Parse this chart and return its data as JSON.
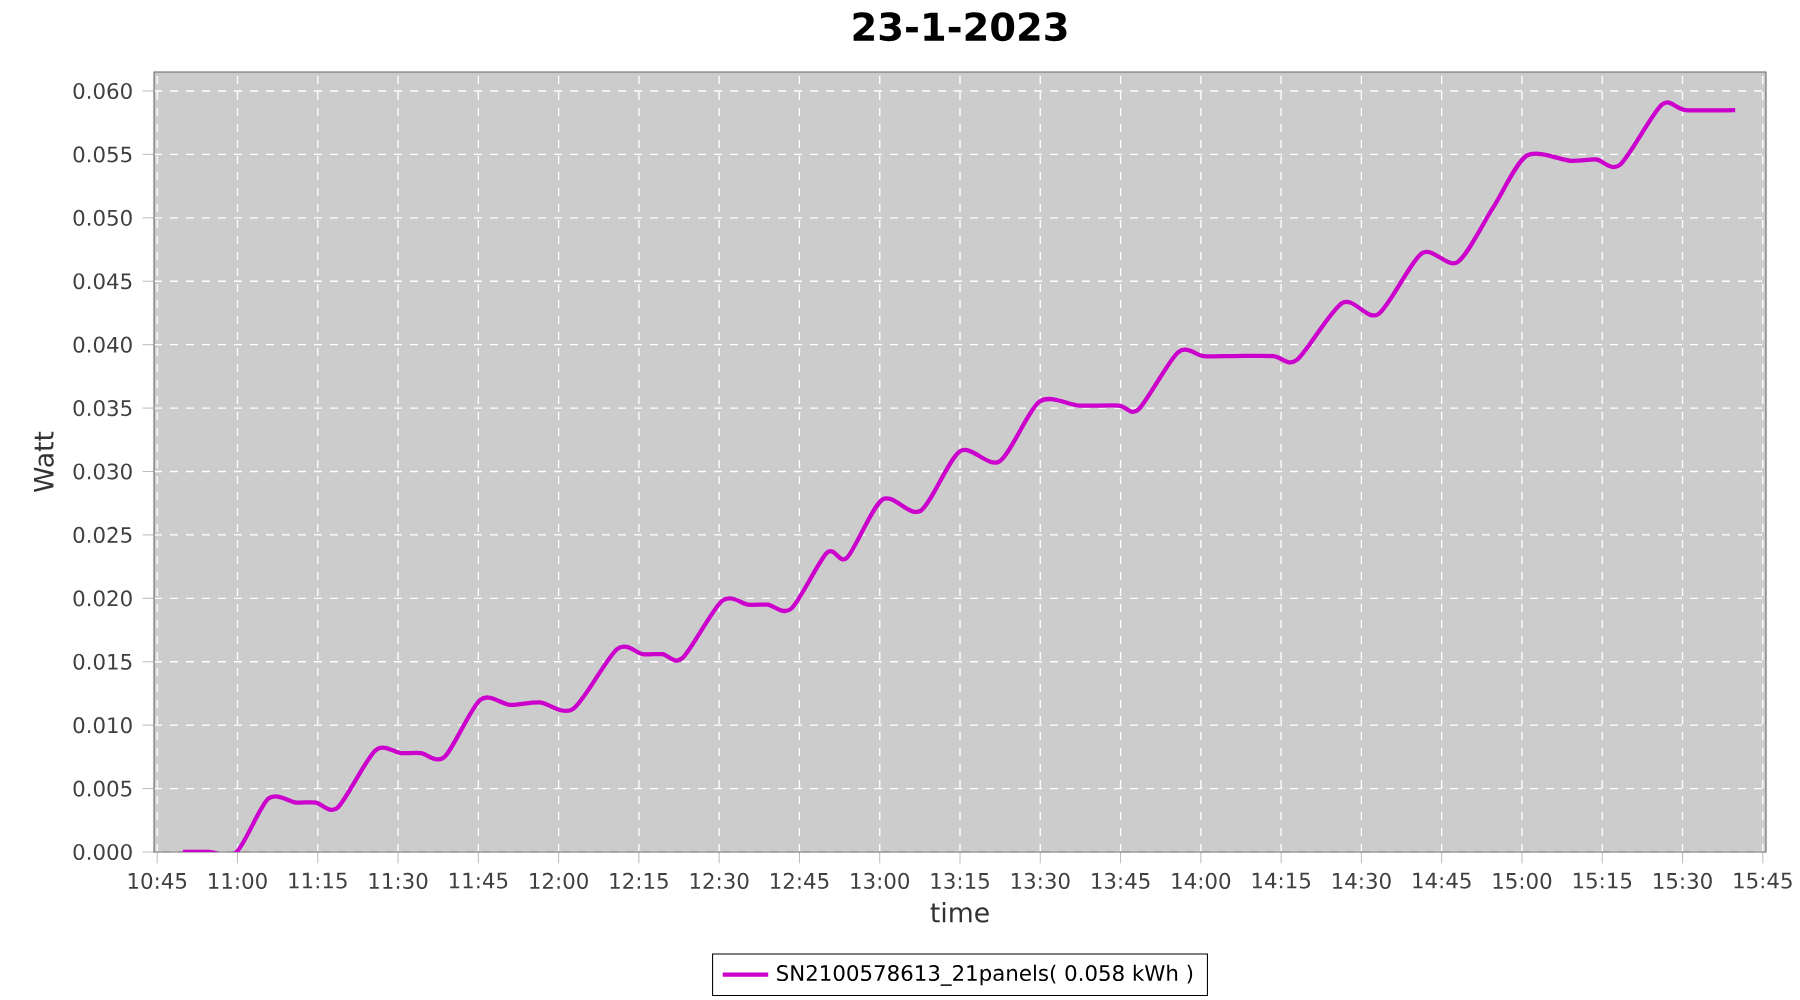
{
  "chart_data": {
    "type": "line",
    "title": "23-1-2023",
    "xlabel": "time",
    "ylabel": "Watt",
    "x": [
      10.83,
      10.91,
      10.997,
      11.096,
      11.182,
      11.244,
      11.312,
      11.429,
      11.509,
      11.571,
      11.645,
      11.756,
      11.849,
      11.941,
      12.046,
      12.182,
      12.262,
      12.324,
      12.386,
      12.509,
      12.59,
      12.651,
      12.725,
      12.836,
      12.898,
      13.009,
      13.127,
      13.25,
      13.373,
      13.497,
      13.62,
      13.744,
      13.806,
      13.929,
      14.009,
      14.102,
      14.225,
      14.299,
      14.441,
      14.552,
      14.688,
      14.799,
      14.91,
      15.015,
      15.151,
      15.231,
      15.306,
      15.435,
      15.509,
      15.664
    ],
    "series": [
      {
        "name": "SN2100578613_21panels( 0.058 kWh )",
        "color": "#cc00cc",
        "values": [
          0,
          0,
          0,
          0.0042,
          0.0039,
          0.0039,
          0.0035,
          0.008,
          0.0078,
          0.0078,
          0.0075,
          0.012,
          0.0116,
          0.0118,
          0.0113,
          0.016,
          0.0156,
          0.0156,
          0.0153,
          0.0198,
          0.0195,
          0.0195,
          0.0192,
          0.0236,
          0.0232,
          0.0278,
          0.0269,
          0.0316,
          0.0308,
          0.0355,
          0.0352,
          0.0352,
          0.0349,
          0.0394,
          0.0391,
          0.0391,
          0.0391,
          0.0388,
          0.0433,
          0.0424,
          0.0472,
          0.0465,
          0.0508,
          0.0549,
          0.0545,
          0.0546,
          0.0542,
          0.0589,
          0.0585,
          0.0585
        ]
      }
    ],
    "xlim": [
      10.74,
      15.76
    ],
    "xticks": [
      {
        "value": 10.75,
        "label": "10:45"
      },
      {
        "value": 11.0,
        "label": "11:00"
      },
      {
        "value": 11.25,
        "label": "11:15"
      },
      {
        "value": 11.5,
        "label": "11:30"
      },
      {
        "value": 11.75,
        "label": "11:45"
      },
      {
        "value": 12.0,
        "label": "12:00"
      },
      {
        "value": 12.25,
        "label": "12:15"
      },
      {
        "value": 12.5,
        "label": "12:30"
      },
      {
        "value": 12.75,
        "label": "12:45"
      },
      {
        "value": 13.0,
        "label": "13:00"
      },
      {
        "value": 13.25,
        "label": "13:15"
      },
      {
        "value": 13.5,
        "label": "13:30"
      },
      {
        "value": 13.75,
        "label": "13:45"
      },
      {
        "value": 14.0,
        "label": "14:00"
      },
      {
        "value": 14.25,
        "label": "14:15"
      },
      {
        "value": 14.5,
        "label": "14:30"
      },
      {
        "value": 14.75,
        "label": "14:45"
      },
      {
        "value": 15.0,
        "label": "15:00"
      },
      {
        "value": 15.25,
        "label": "15:15"
      },
      {
        "value": 15.5,
        "label": "15:30"
      },
      {
        "value": 15.75,
        "label": "15:45"
      }
    ],
    "ylim": [
      0,
      0.0615
    ],
    "yticks": [
      {
        "value": 0,
        "label": "0.000"
      },
      {
        "value": 0.005,
        "label": "0.005"
      },
      {
        "value": 0.01,
        "label": "0.010"
      },
      {
        "value": 0.015,
        "label": "0.015"
      },
      {
        "value": 0.02,
        "label": "0.020"
      },
      {
        "value": 0.025,
        "label": "0.025"
      },
      {
        "value": 0.03,
        "label": "0.030"
      },
      {
        "value": 0.035,
        "label": "0.035"
      },
      {
        "value": 0.04,
        "label": "0.040"
      },
      {
        "value": 0.045,
        "label": "0.045"
      },
      {
        "value": 0.05,
        "label": "0.050"
      },
      {
        "value": 0.055,
        "label": "0.055"
      },
      {
        "value": 0.06,
        "label": "0.060"
      }
    ],
    "grid": true,
    "legend": "bottom"
  }
}
